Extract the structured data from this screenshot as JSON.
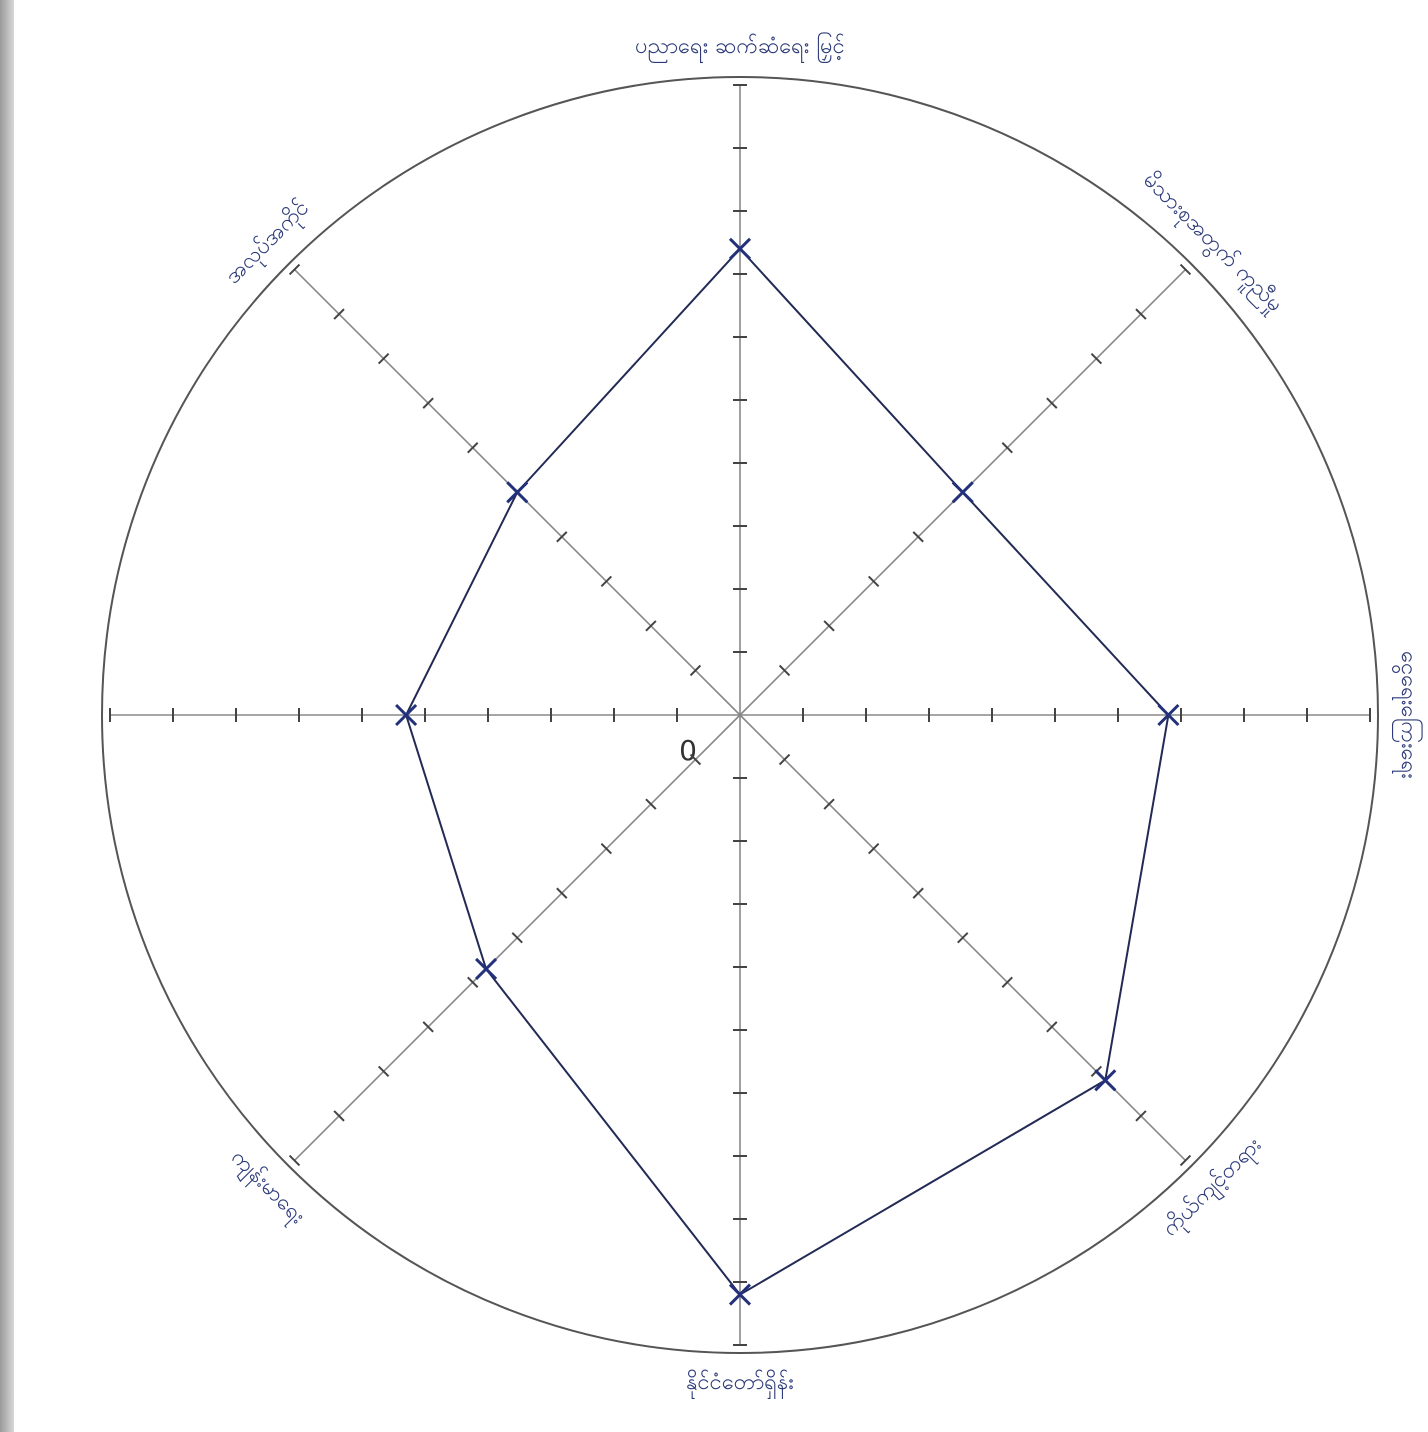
{
  "chart_data": {
    "type": "radar",
    "categories": [
      "ပညာရေး ဆက်ဆံရေး မြှင့်",
      "မိသားစုအတွက် ကူညီမှု",
      "ငွေရေးကြေးရေး",
      "ကိုယ်ကျင့်တရား",
      "နိုင်ငံတော်ရှိန်း",
      "ကျန်းမာရေး",
      null,
      "အလုပ်အကိုင်"
    ],
    "values": [
      7.4,
      5.0,
      6.8,
      8.2,
      9.2,
      5.7,
      5.3,
      5.0
    ],
    "rlim": [
      0,
      10
    ],
    "rticks": [
      1,
      2,
      3,
      4,
      5,
      6,
      7,
      8,
      9,
      10
    ],
    "center_label": "0",
    "color": "#222a55"
  }
}
